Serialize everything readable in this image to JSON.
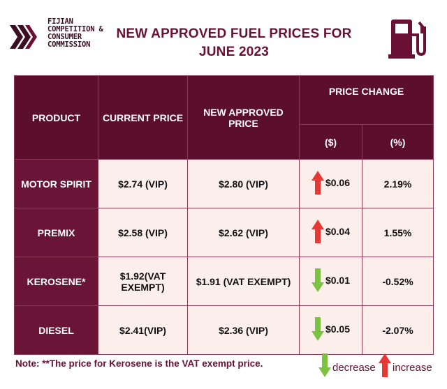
{
  "header": {
    "org_lines": [
      "FIJIAN",
      "COMPETITION &",
      "CONSUMER",
      "COMMISSION"
    ],
    "title_lines": [
      "NEW APPROVED FUEL PRICES FOR",
      "JUNE 2023"
    ]
  },
  "table": {
    "headers": {
      "product": "PRODUCT",
      "current": "CURRENT PRICE",
      "new": "NEW APPROVED PRICE",
      "change": "PRICE CHANGE",
      "change_dollar": "($)",
      "change_percent": "(%)"
    },
    "rows": [
      {
        "product": "MOTOR SPIRIT",
        "current": "$2.74 (VIP)",
        "new": "$2.80 (VIP)",
        "direction": "increase",
        "change_dollar": "$0.06",
        "change_percent": "2.19%"
      },
      {
        "product": "PREMIX",
        "current": "$2.58 (VIP)",
        "new": "$2.62 (VIP)",
        "direction": "increase",
        "change_dollar": "$0.04",
        "change_percent": "1.55%"
      },
      {
        "product": "KEROSENE*",
        "current": "$1.92(VAT EXEMPT)",
        "new": "$1.91 (VAT EXEMPT)",
        "direction": "decrease",
        "change_dollar": "$0.01",
        "change_percent": "-0.52%"
      },
      {
        "product": "DIESEL",
        "current": "$2.41(VIP)",
        "new": "$2.36 (VIP)",
        "direction": "decrease",
        "change_dollar": "$0.05",
        "change_percent": "-2.07%"
      }
    ]
  },
  "note": "Note: **The price for Kerosene is the VAT exempt price.",
  "legend": {
    "decrease": "decrease",
    "increase": "increase"
  },
  "colors": {
    "maroon": "#6a1034",
    "increase": "#e53935",
    "decrease": "#7cc242",
    "cell_bg": "#fcefeb"
  },
  "icons": {
    "logo": "fccc-chevron-logo",
    "fuel": "fuel-pump-icon",
    "up": "arrow-up-icon",
    "down": "arrow-down-icon"
  }
}
